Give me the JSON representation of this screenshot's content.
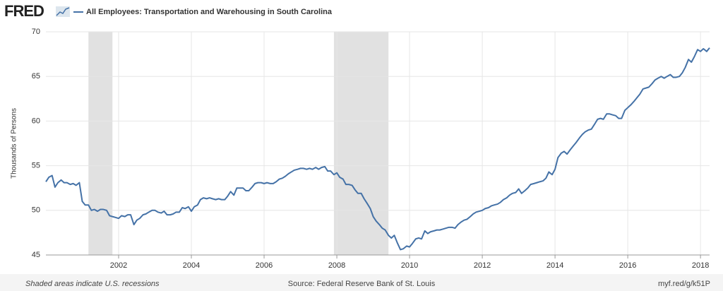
{
  "chart_data": {
    "type": "line",
    "logo": "FRED",
    "title": "All Employees: Transportation and Warehousing in South Carolina",
    "ylabel": "Thousands of Persons",
    "footer_left": "Shaded areas indicate U.S. recessions",
    "footer_center": "Source: Federal Reserve Bank of St. Louis",
    "footer_right": "myf.red/g/k51P",
    "xlim": [
      2000,
      2018.25
    ],
    "xticks": [
      2002,
      2004,
      2006,
      2008,
      2010,
      2012,
      2014,
      2016,
      2018
    ],
    "ylim": [
      45,
      70
    ],
    "yticks": [
      45,
      50,
      55,
      60,
      65,
      70
    ],
    "grid": true,
    "recession_color": "#e1e1e1",
    "recessions": [
      [
        2001.17,
        2001.83
      ],
      [
        2007.92,
        2009.42
      ]
    ],
    "x": [
      2000,
      2000.08,
      2000.17,
      2000.25,
      2000.33,
      2000.42,
      2000.5,
      2000.58,
      2000.67,
      2000.75,
      2000.83,
      2000.92,
      2001,
      2001.08,
      2001.17,
      2001.25,
      2001.33,
      2001.42,
      2001.5,
      2001.58,
      2001.67,
      2001.75,
      2001.83,
      2001.92,
      2002,
      2002.08,
      2002.17,
      2002.25,
      2002.33,
      2002.42,
      2002.5,
      2002.58,
      2002.67,
      2002.75,
      2002.83,
      2002.92,
      2003,
      2003.08,
      2003.17,
      2003.25,
      2003.33,
      2003.42,
      2003.5,
      2003.58,
      2003.67,
      2003.75,
      2003.83,
      2003.92,
      2004,
      2004.08,
      2004.17,
      2004.25,
      2004.33,
      2004.42,
      2004.5,
      2004.58,
      2004.67,
      2004.75,
      2004.83,
      2004.92,
      2005,
      2005.08,
      2005.17,
      2005.25,
      2005.33,
      2005.42,
      2005.5,
      2005.58,
      2005.67,
      2005.75,
      2005.83,
      2005.92,
      2006,
      2006.08,
      2006.17,
      2006.25,
      2006.33,
      2006.42,
      2006.5,
      2006.58,
      2006.67,
      2006.75,
      2006.83,
      2006.92,
      2007,
      2007.08,
      2007.17,
      2007.25,
      2007.33,
      2007.42,
      2007.5,
      2007.58,
      2007.67,
      2007.75,
      2007.83,
      2007.92,
      2008,
      2008.08,
      2008.17,
      2008.25,
      2008.33,
      2008.42,
      2008.5,
      2008.58,
      2008.67,
      2008.75,
      2008.83,
      2008.92,
      2009,
      2009.08,
      2009.17,
      2009.25,
      2009.33,
      2009.42,
      2009.5,
      2009.58,
      2009.67,
      2009.75,
      2009.83,
      2009.92,
      2010,
      2010.08,
      2010.17,
      2010.25,
      2010.33,
      2010.42,
      2010.5,
      2010.58,
      2010.67,
      2010.75,
      2010.83,
      2010.92,
      2011,
      2011.08,
      2011.17,
      2011.25,
      2011.33,
      2011.42,
      2011.5,
      2011.58,
      2011.67,
      2011.75,
      2011.83,
      2011.92,
      2012,
      2012.08,
      2012.17,
      2012.25,
      2012.33,
      2012.42,
      2012.5,
      2012.58,
      2012.67,
      2012.75,
      2012.83,
      2012.92,
      2013,
      2013.08,
      2013.17,
      2013.25,
      2013.33,
      2013.42,
      2013.5,
      2013.58,
      2013.67,
      2013.75,
      2013.83,
      2013.92,
      2014,
      2014.08,
      2014.17,
      2014.25,
      2014.33,
      2014.42,
      2014.5,
      2014.58,
      2014.67,
      2014.75,
      2014.83,
      2014.92,
      2015,
      2015.08,
      2015.17,
      2015.25,
      2015.33,
      2015.42,
      2015.5,
      2015.58,
      2015.67,
      2015.75,
      2015.83,
      2015.92,
      2016,
      2016.08,
      2016.17,
      2016.25,
      2016.33,
      2016.42,
      2016.5,
      2016.58,
      2016.67,
      2016.75,
      2016.83,
      2016.92,
      2017,
      2017.08,
      2017.17,
      2017.25,
      2017.33,
      2017.42,
      2017.5,
      2017.58,
      2017.67,
      2017.75,
      2017.83,
      2017.92,
      2018,
      2018.08,
      2018.17,
      2018.25
    ],
    "series": [
      {
        "name": "All Employees: Transportation and Warehousing in South Carolina",
        "color": "#4572a7",
        "values": [
          53.2,
          53.7,
          53.9,
          52.6,
          53.1,
          53.4,
          53.1,
          53.1,
          52.9,
          53.0,
          52.8,
          53.1,
          51.0,
          50.6,
          50.6,
          50.0,
          50.1,
          49.9,
          50.1,
          50.1,
          50.0,
          49.4,
          49.3,
          49.2,
          49.1,
          49.4,
          49.3,
          49.5,
          49.5,
          48.4,
          48.9,
          49.1,
          49.5,
          49.6,
          49.8,
          50.0,
          50.0,
          49.8,
          49.7,
          49.9,
          49.5,
          49.5,
          49.6,
          49.8,
          49.8,
          50.3,
          50.2,
          50.4,
          49.9,
          50.4,
          50.6,
          51.2,
          51.4,
          51.3,
          51.4,
          51.3,
          51.2,
          51.3,
          51.2,
          51.2,
          51.6,
          52.1,
          51.7,
          52.5,
          52.5,
          52.5,
          52.2,
          52.2,
          52.6,
          53.0,
          53.1,
          53.1,
          53.0,
          53.1,
          53.0,
          53.0,
          53.2,
          53.5,
          53.6,
          53.8,
          54.1,
          54.3,
          54.5,
          54.6,
          54.7,
          54.7,
          54.6,
          54.7,
          54.6,
          54.8,
          54.6,
          54.8,
          54.9,
          54.4,
          54.4,
          54.0,
          54.2,
          53.7,
          53.5,
          52.9,
          52.9,
          52.8,
          52.3,
          51.9,
          51.9,
          51.3,
          50.8,
          50.2,
          49.3,
          48.8,
          48.4,
          48.0,
          47.8,
          47.2,
          46.9,
          47.2,
          46.3,
          45.6,
          45.7,
          46.0,
          45.9,
          46.3,
          46.8,
          46.9,
          46.8,
          47.7,
          47.4,
          47.6,
          47.7,
          47.8,
          47.8,
          47.9,
          48.0,
          48.1,
          48.1,
          48.0,
          48.4,
          48.7,
          48.9,
          49.0,
          49.3,
          49.6,
          49.8,
          49.9,
          50.0,
          50.2,
          50.3,
          50.5,
          50.6,
          50.7,
          50.9,
          51.2,
          51.4,
          51.7,
          51.9,
          52.0,
          52.4,
          51.9,
          52.2,
          52.5,
          52.9,
          53.0,
          53.1,
          53.2,
          53.3,
          53.6,
          54.3,
          54.0,
          54.6,
          55.9,
          56.4,
          56.6,
          56.3,
          56.8,
          57.2,
          57.6,
          58.1,
          58.5,
          58.8,
          59.0,
          59.1,
          59.6,
          60.2,
          60.3,
          60.2,
          60.8,
          60.8,
          60.7,
          60.6,
          60.3,
          60.3,
          61.2,
          61.5,
          61.8,
          62.2,
          62.6,
          63.0,
          63.6,
          63.7,
          63.8,
          64.2,
          64.6,
          64.8,
          65.0,
          64.8,
          65.0,
          65.2,
          64.9,
          64.9,
          65.0,
          65.4,
          66.0,
          66.9,
          66.6,
          67.2,
          68.0,
          67.8,
          68.1,
          67.8,
          68.2
        ]
      }
    ]
  }
}
